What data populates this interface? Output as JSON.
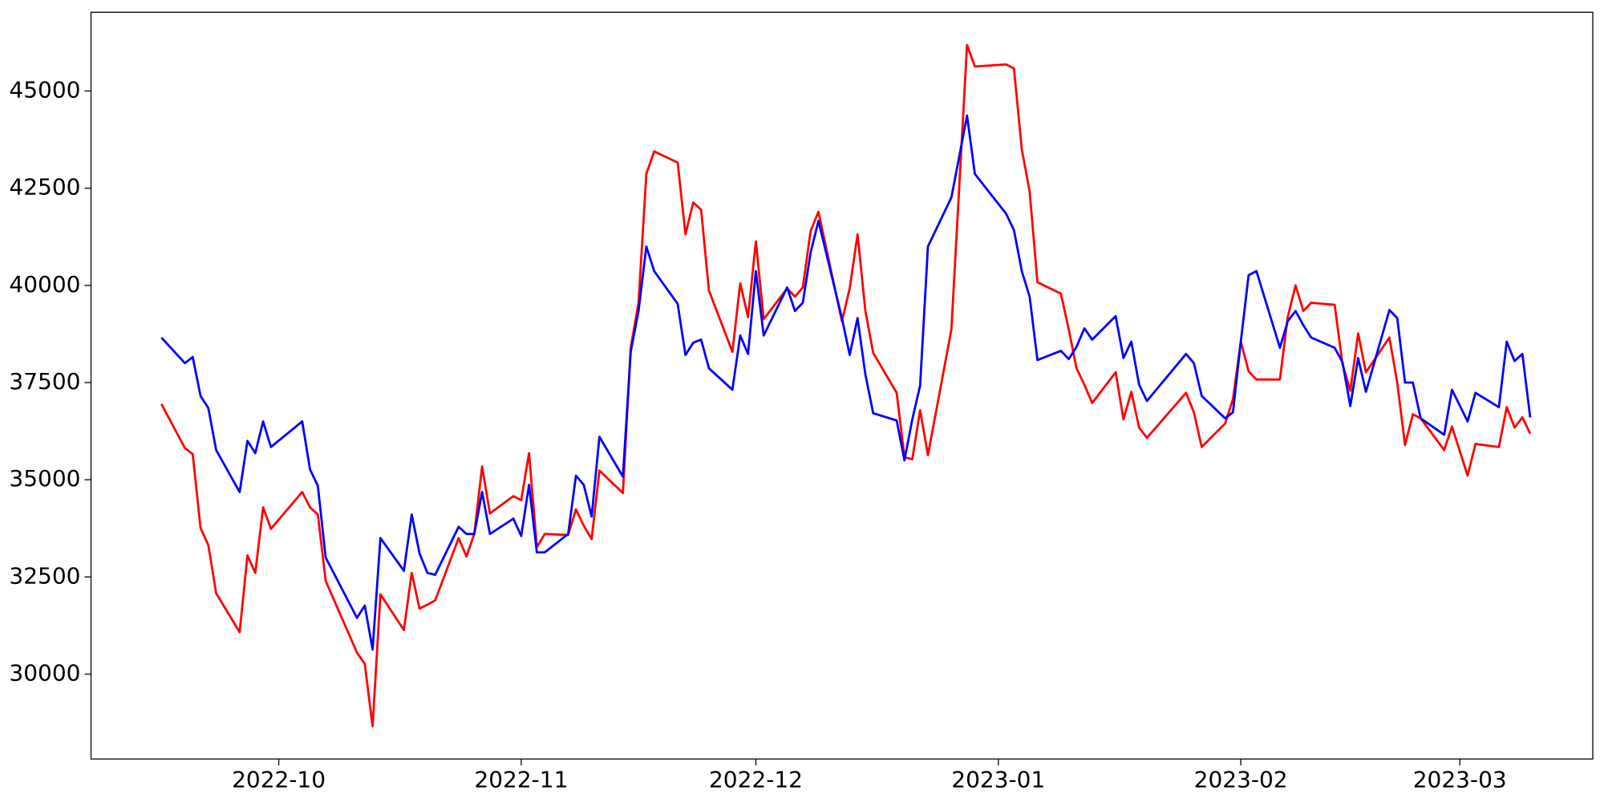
{
  "chart_data": {
    "type": "line",
    "x": [
      "2022-09-16",
      "2022-09-19",
      "2022-09-20",
      "2022-09-21",
      "2022-09-22",
      "2022-09-23",
      "2022-09-26",
      "2022-09-27",
      "2022-09-28",
      "2022-09-29",
      "2022-09-30",
      "2022-10-04",
      "2022-10-05",
      "2022-10-06",
      "2022-10-07",
      "2022-10-11",
      "2022-10-12",
      "2022-10-13",
      "2022-10-14",
      "2022-10-17",
      "2022-10-18",
      "2022-10-19",
      "2022-10-20",
      "2022-10-21",
      "2022-10-24",
      "2022-10-25",
      "2022-10-26",
      "2022-10-27",
      "2022-10-28",
      "2022-10-31",
      "2022-11-01",
      "2022-11-02",
      "2022-11-03",
      "2022-11-04",
      "2022-11-07",
      "2022-11-08",
      "2022-11-09",
      "2022-11-10",
      "2022-11-11",
      "2022-11-14",
      "2022-11-15",
      "2022-11-16",
      "2022-11-17",
      "2022-11-18",
      "2022-11-21",
      "2022-11-22",
      "2022-11-23",
      "2022-11-24",
      "2022-11-25",
      "2022-11-28",
      "2022-11-29",
      "2022-11-30",
      "2022-12-01",
      "2022-12-02",
      "2022-12-05",
      "2022-12-06",
      "2022-12-07",
      "2022-12-08",
      "2022-12-09",
      "2022-12-12",
      "2022-12-13",
      "2022-12-14",
      "2022-12-15",
      "2022-12-16",
      "2022-12-19",
      "2022-12-20",
      "2022-12-21",
      "2022-12-22",
      "2022-12-23",
      "2022-12-26",
      "2022-12-28",
      "2022-12-29",
      "2023-01-02",
      "2023-01-03",
      "2023-01-04",
      "2023-01-05",
      "2023-01-06",
      "2023-01-09",
      "2023-01-10",
      "2023-01-11",
      "2023-01-12",
      "2023-01-13",
      "2023-01-16",
      "2023-01-17",
      "2023-01-18",
      "2023-01-19",
      "2023-01-20",
      "2023-01-25",
      "2023-01-26",
      "2023-01-27",
      "2023-01-30",
      "2023-01-31",
      "2023-02-01",
      "2023-02-02",
      "2023-02-03",
      "2023-02-06",
      "2023-02-07",
      "2023-02-08",
      "2023-02-09",
      "2023-02-10",
      "2023-02-13",
      "2023-02-14",
      "2023-02-15",
      "2023-02-16",
      "2023-02-17",
      "2023-02-20",
      "2023-02-21",
      "2023-02-22",
      "2023-02-23",
      "2023-02-24",
      "2023-02-27",
      "2023-02-28",
      "2023-03-02",
      "2023-03-03",
      "2023-03-06",
      "2023-03-07",
      "2023-03-08",
      "2023-03-09",
      "2023-03-10"
    ],
    "series": [
      {
        "color": "red",
        "values": [
          36947,
          35816,
          35658,
          33763,
          33316,
          32079,
          31079,
          33053,
          32605,
          34289,
          33737,
          34684,
          34289,
          34105,
          32395,
          30553,
          30263,
          28658,
          32053,
          31132,
          32605,
          31684,
          31789,
          31895,
          33500,
          33026,
          33605,
          35342,
          34132,
          34579,
          34474,
          35684,
          33263,
          33605,
          33579,
          34237,
          33816,
          33474,
          35237,
          34658,
          38395,
          39553,
          42868,
          43447,
          43158,
          41316,
          42132,
          41947,
          39868,
          38289,
          40053,
          39184,
          41132,
          39132,
          39921,
          39711,
          39947,
          41395,
          41895,
          39079,
          39921,
          41316,
          39342,
          38263,
          37237,
          35579,
          35526,
          36789,
          35632,
          38868,
          46184,
          45632,
          45684,
          45579,
          43500,
          42421,
          40079,
          39789,
          38868,
          37868,
          37447,
          36974,
          37763,
          36553,
          37263,
          36342,
          36079,
          37237,
          36737,
          35842,
          36447,
          37079,
          38553,
          37789,
          37579,
          37579,
          39184,
          40000,
          39342,
          39553,
          39500,
          37974,
          37289,
          38763,
          37763,
          38658,
          37500,
          35895,
          36684,
          36579,
          35763,
          36368,
          35105,
          35921,
          35842,
          36868,
          36342,
          36605,
          36184
        ]
      },
      {
        "color": "blue",
        "values": [
          38658,
          38000,
          38158,
          37158,
          36842,
          35763,
          34684,
          36000,
          35684,
          36500,
          35842,
          36500,
          35263,
          34842,
          33000,
          31447,
          31763,
          30632,
          33500,
          32658,
          34105,
          33105,
          32605,
          32553,
          33789,
          33605,
          33605,
          34684,
          33605,
          34000,
          33553,
          34868,
          33132,
          33132,
          33605,
          35105,
          34868,
          34053,
          36105,
          35079,
          38289,
          39342,
          41000,
          40368,
          39526,
          38211,
          38526,
          38605,
          37868,
          37316,
          38711,
          38237,
          40368,
          38711,
          39947,
          39342,
          39553,
          40842,
          41658,
          39158,
          38211,
          39158,
          37711,
          36711,
          36526,
          35500,
          36553,
          37421,
          41000,
          42263,
          44368,
          42868,
          41842,
          41421,
          40368,
          39711,
          38079,
          38316,
          38105,
          38421,
          38895,
          38605,
          39211,
          38132,
          38553,
          37447,
          37026,
          38237,
          38000,
          37158,
          36579,
          36737,
          38553,
          40263,
          40368,
          38395,
          39079,
          39342,
          38974,
          38658,
          38395,
          38026,
          36895,
          38132,
          37263,
          39368,
          39158,
          37500,
          37500,
          36579,
          36158,
          37316,
          36500,
          37237,
          36868,
          38553,
          38053,
          38237,
          36605
        ]
      }
    ],
    "xlim": [
      "2022-09-07",
      "2023-03-18"
    ],
    "xticks": [
      {
        "value": "2022-10-01",
        "label": "2022-10"
      },
      {
        "value": "2022-11-01",
        "label": "2022-11"
      },
      {
        "value": "2022-12-01",
        "label": "2022-12"
      },
      {
        "value": "2023-01-01",
        "label": "2023-01"
      },
      {
        "value": "2023-02-01",
        "label": "2023-02"
      },
      {
        "value": "2023-03-01",
        "label": "2023-03"
      }
    ],
    "ylim": [
      27816,
      47026
    ],
    "yticks": [
      30000,
      32500,
      35000,
      37500,
      40000,
      42500,
      45000
    ]
  }
}
